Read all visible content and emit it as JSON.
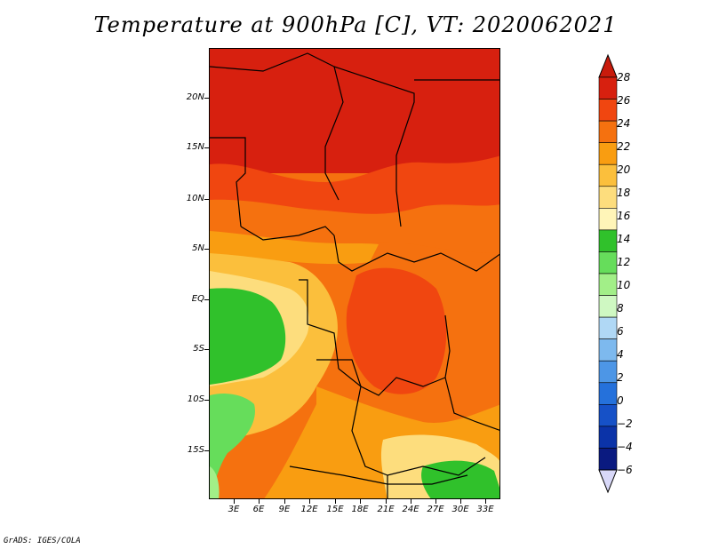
{
  "title": "Temperature at 900hPa [C], VT: 2020062021",
  "footer": "GrADS: IGES/COLA",
  "lat_labels": [
    "20N",
    "15N",
    "10N",
    "5N",
    "EQ",
    "5S",
    "10S",
    "15S"
  ],
  "lon_labels": [
    "3E",
    "6E",
    "9E",
    "12E",
    "15E",
    "18E",
    "21E",
    "24E",
    "27E",
    "30E",
    "33E"
  ],
  "colorbar": {
    "labels": [
      "28",
      "26",
      "24",
      "22",
      "20",
      "18",
      "16",
      "14",
      "12",
      "10",
      "8",
      "6",
      "4",
      "2",
      "0",
      "−2",
      "−4",
      "−6"
    ],
    "colors": [
      "#d7200f",
      "#f04610",
      "#f5710f",
      "#f99d11",
      "#fbbf3c",
      "#fddd7d",
      "#fff5b8",
      "#30c12b",
      "#66dd5b",
      "#a2ef88",
      "#cff8c2",
      "#b0d8f5",
      "#7db9ee",
      "#4d96e6",
      "#2571db",
      "#1651c7",
      "#0b33a8",
      "#0a1a80"
    ],
    "top_triangle_color": "#c81b0c",
    "bottom_triangle_color": "#d8d8f8"
  }
}
